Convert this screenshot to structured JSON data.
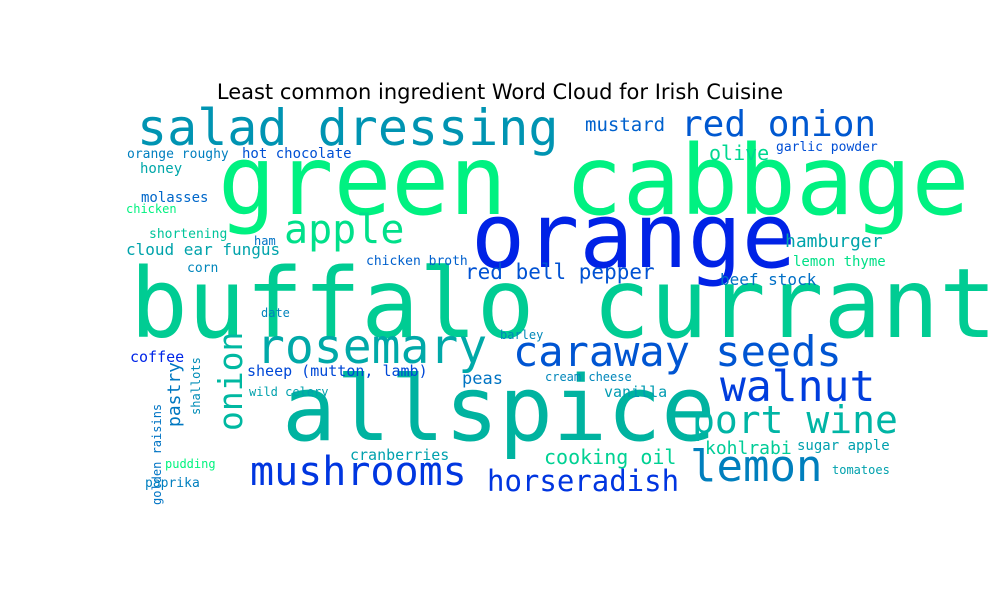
{
  "chart_data": {
    "type": "wordcloud",
    "title": "Least common ingredient Word Cloud for Irish Cuisine",
    "words": [
      {
        "text": "green cabbage",
        "color": "#00f181"
      },
      {
        "text": "buffalo currant",
        "color": "#00cc93"
      },
      {
        "text": "orange",
        "color": "#0022e6"
      },
      {
        "text": "allspice",
        "color": "#00b3a0"
      },
      {
        "text": "salad dressing",
        "color": "#0094b2"
      },
      {
        "text": "rosemary",
        "color": "#00a9a8"
      },
      {
        "text": "caraway seeds",
        "color": "#0055d2"
      },
      {
        "text": "walnut",
        "color": "#003ddd"
      },
      {
        "text": "port wine",
        "color": "#00b5a5"
      },
      {
        "text": "lemon",
        "color": "#007fbd"
      },
      {
        "text": "mushrooms",
        "color": "#0036e0"
      },
      {
        "text": "apple",
        "color": "#00e08a"
      },
      {
        "text": "red onion",
        "color": "#0058d0"
      },
      {
        "text": "onion",
        "color": "#00b8a1"
      },
      {
        "text": "horseradish",
        "color": "#0035e0"
      },
      {
        "text": "mustard",
        "color": "#0061cd"
      },
      {
        "text": "red bell pepper",
        "color": "#0052d3"
      },
      {
        "text": "cooking oil",
        "color": "#00d193"
      },
      {
        "text": "olive",
        "color": "#00d891"
      },
      {
        "text": "hamburger",
        "color": "#00a4ab"
      },
      {
        "text": "kohlrabi",
        "color": "#00cc97"
      },
      {
        "text": "beef stock",
        "color": "#006fc6"
      },
      {
        "text": "cloud ear fungus",
        "color": "#00a3ab"
      },
      {
        "text": "sheep (mutton, lamb)",
        "color": "#0048d7"
      },
      {
        "text": "peas",
        "color": "#0074c3"
      },
      {
        "text": "pastry",
        "color": "#0078c1"
      },
      {
        "text": "cranberries",
        "color": "#00a1ad"
      },
      {
        "text": "coffee",
        "color": "#0025e8"
      },
      {
        "text": "vanilla",
        "color": "#009bb1"
      },
      {
        "text": "lemon thyme",
        "color": "#00e087"
      },
      {
        "text": "honey",
        "color": "#00a7a9"
      },
      {
        "text": "molasses",
        "color": "#0067ca"
      },
      {
        "text": "shortening",
        "color": "#00c49b"
      },
      {
        "text": "corn",
        "color": "#0086bb"
      },
      {
        "text": "sugar apple",
        "color": "#00a0ae"
      },
      {
        "text": "hot chocolate",
        "color": "#0050d4"
      },
      {
        "text": "orange roughy",
        "color": "#007fbf"
      },
      {
        "text": "garlic powder",
        "color": "#004ed5"
      },
      {
        "text": "chicken broth",
        "color": "#0060cd"
      },
      {
        "text": "ham",
        "color": "#0073c5"
      },
      {
        "text": "chicken",
        "color": "#00f17f"
      },
      {
        "text": "date",
        "color": "#0083bb"
      },
      {
        "text": "barley",
        "color": "#0088b9"
      },
      {
        "text": "cream cheese",
        "color": "#0086ba"
      },
      {
        "text": "wild celery",
        "color": "#00a1ad"
      },
      {
        "text": "shallots",
        "color": "#008db7"
      },
      {
        "text": "golden raisins",
        "color": "#0074c4"
      },
      {
        "text": "pudding",
        "color": "#00f47e"
      },
      {
        "text": "paprika",
        "color": "#007fbf"
      },
      {
        "text": "tomatoes",
        "color": "#00a1ad"
      }
    ]
  }
}
